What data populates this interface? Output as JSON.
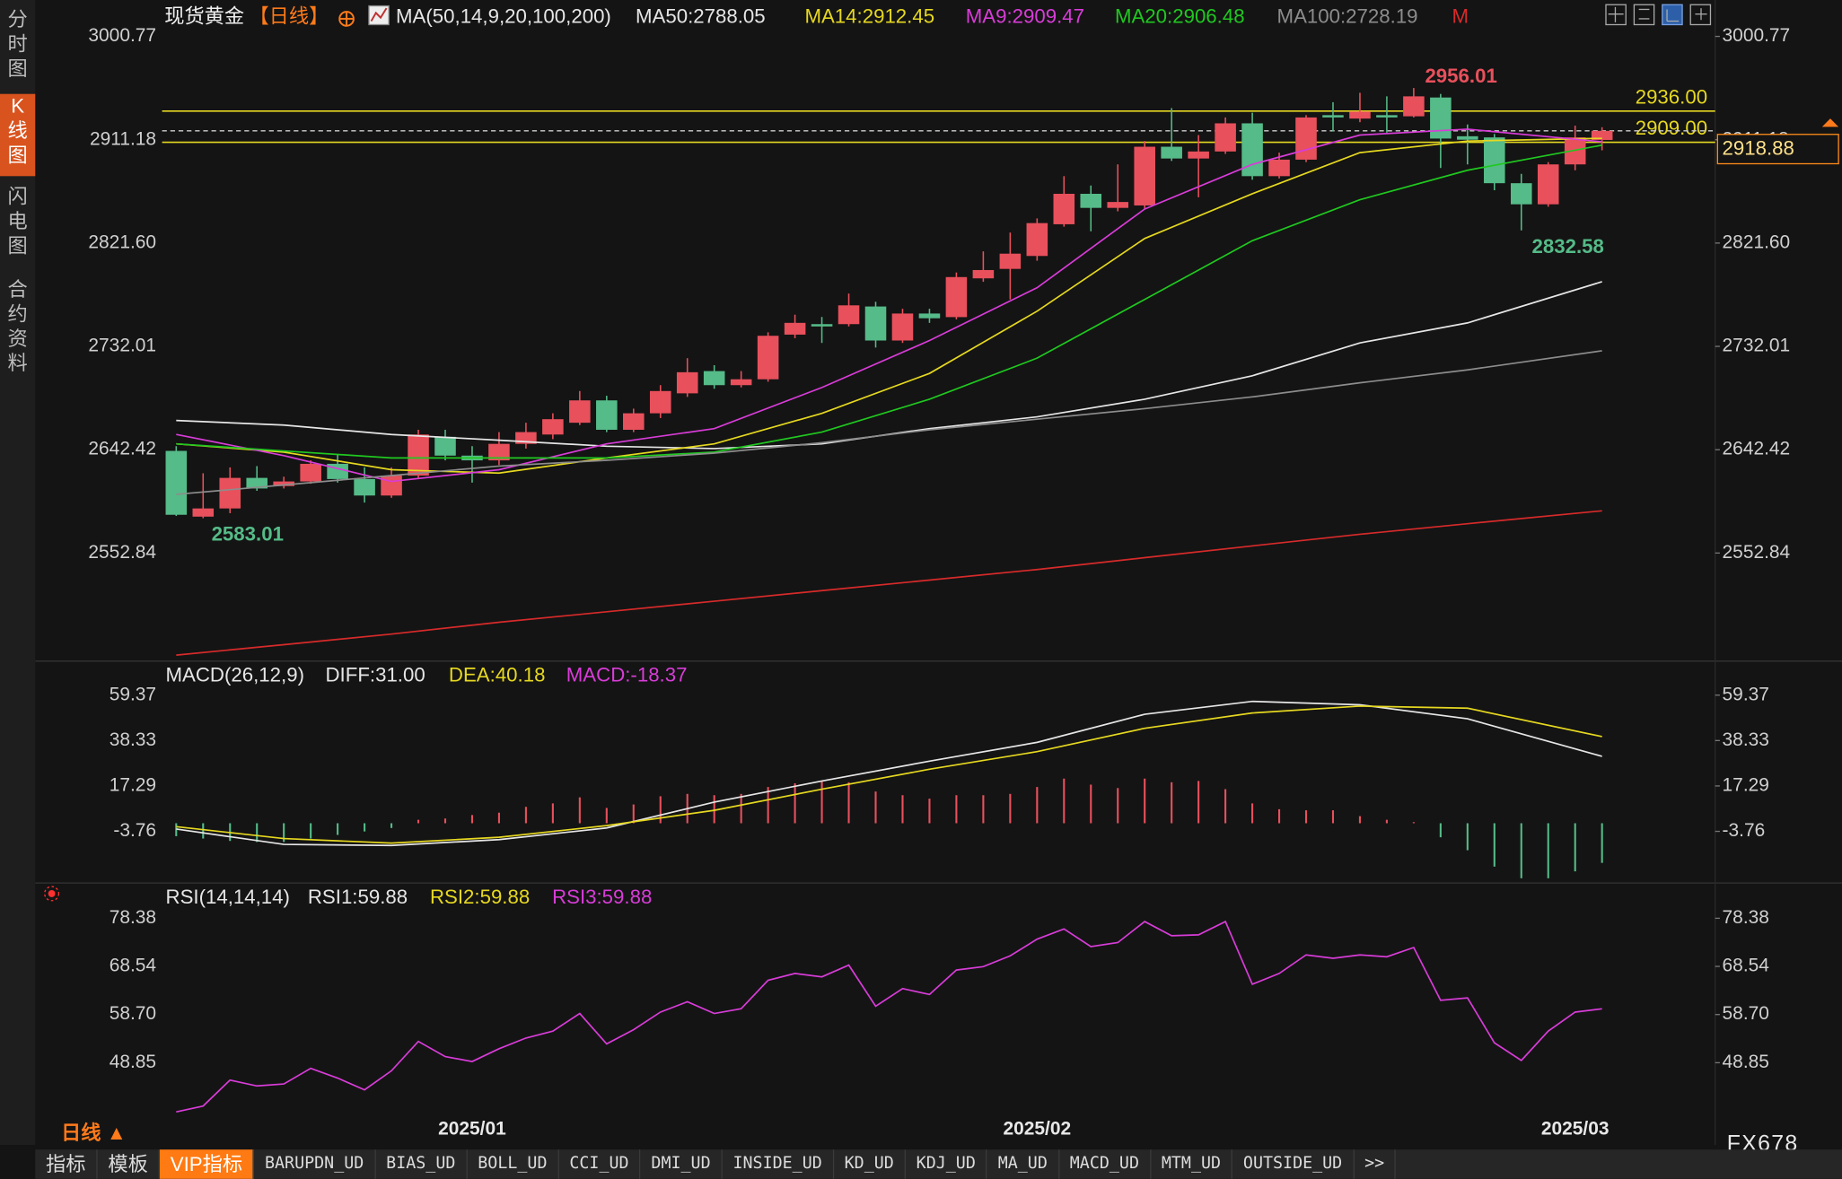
{
  "sidebar": [
    "分时图",
    "K线图",
    "闪电图",
    "合约资料"
  ],
  "header": {
    "symbol": "现货黄金",
    "period": "【日线】",
    "indicator": "MA(50,14,9,20,100,200)"
  },
  "chart_data": [
    {
      "type": "candlestick",
      "categories": [
        null,
        null,
        null,
        null,
        null,
        null,
        null,
        null,
        null,
        null,
        null,
        "2025/01",
        null,
        null,
        null,
        null,
        null,
        null,
        null,
        null,
        null,
        null,
        null,
        null,
        null,
        null,
        null,
        null,
        null,
        null,
        null,
        null,
        "2025/02",
        null,
        null,
        null,
        null,
        null,
        null,
        null,
        null,
        null,
        null,
        null,
        null,
        null,
        null,
        null,
        null,
        null,
        null,
        null,
        "2025/03",
        null
      ],
      "open": [
        2641.4,
        2584.4,
        2591.5,
        2618.0,
        2610.9,
        2614.9,
        2630.2,
        2617.0,
        2602.7,
        2620.0,
        2653.6,
        2637.3,
        2633.2,
        2647.5,
        2655.6,
        2665.8,
        2685.2,
        2659.7,
        2674.0,
        2691.3,
        2710.6,
        2698.4,
        2703.5,
        2742.2,
        2751.3,
        2751.3,
        2766.6,
        2737.1,
        2760.5,
        2757.4,
        2791.0,
        2799.2,
        2810.4,
        2837.9,
        2864.3,
        2852.1,
        2854.2,
        2905.1,
        2894.9,
        2901.0,
        2925.4,
        2879.6,
        2893.9,
        2932.5,
        2929.5,
        2932.5,
        2931.5,
        2947.8,
        2914.2,
        2913.2,
        2873.5,
        2855.2,
        2889.8,
        2911.0
      ],
      "high": [
        2645.5,
        2622.0,
        2627.1,
        2628.2,
        2619.0,
        2633.2,
        2638.3,
        2627.1,
        2627.1,
        2659.7,
        2659.7,
        2645.5,
        2657.7,
        2665.8,
        2674.0,
        2693.3,
        2689.2,
        2678.0,
        2698.4,
        2721.8,
        2715.7,
        2710.6,
        2744.2,
        2759.5,
        2757.5,
        2777.8,
        2770.7,
        2764.6,
        2764.6,
        2796.1,
        2814.4,
        2830.7,
        2843.0,
        2879.6,
        2871.5,
        2889.8,
        2910.1,
        2938.6,
        2915.2,
        2930.5,
        2934.6,
        2900.0,
        2932.5,
        2943.7,
        2951.9,
        2948.8,
        2956.01,
        2950.9,
        2924.4,
        2916.2,
        2881.6,
        2891.8,
        2923.4,
        2922.0
      ],
      "low": [
        2585.0,
        2583.01,
        2587.4,
        2606.8,
        2608.8,
        2612.9,
        2613.9,
        2596.6,
        2600.7,
        2617.0,
        2633.2,
        2613.9,
        2629.2,
        2643.4,
        2651.6,
        2663.8,
        2657.7,
        2657.7,
        2669.9,
        2688.2,
        2695.3,
        2696.4,
        2701.4,
        2739.1,
        2735.0,
        2749.3,
        2731.0,
        2735.0,
        2752.4,
        2755.4,
        2788.0,
        2772.7,
        2806.3,
        2835.8,
        2831.8,
        2849.1,
        2851.1,
        2892.8,
        2861.3,
        2898.9,
        2876.5,
        2877.6,
        2891.8,
        2918.3,
        2926.4,
        2917.3,
        2930.5,
        2886.7,
        2889.8,
        2867.4,
        2832.58,
        2853.1,
        2884.7,
        2902.0
      ],
      "close": [
        2586.0,
        2591.5,
        2618.0,
        2608.8,
        2614.9,
        2630.2,
        2617.0,
        2602.7,
        2620.0,
        2655.6,
        2637.3,
        2633.2,
        2647.5,
        2657.7,
        2668.9,
        2685.2,
        2659.7,
        2674.0,
        2693.3,
        2709.6,
        2698.4,
        2703.5,
        2741.2,
        2752.4,
        2749.3,
        2767.6,
        2737.1,
        2760.5,
        2756.4,
        2792.1,
        2798.2,
        2812.4,
        2838.9,
        2864.3,
        2852.1,
        2857.2,
        2905.1,
        2894.9,
        2901.0,
        2925.4,
        2879.6,
        2893.9,
        2930.5,
        2930.5,
        2935.6,
        2930.5,
        2948.8,
        2912.2,
        2911.2,
        2873.5,
        2855.2,
        2889.8,
        2913.2,
        2918.88
      ],
      "up_color": "#e8505c",
      "down_color": "#55bb88",
      "series": [
        {
          "name": "MA50:2788.05",
          "color": "#e6e6e6",
          "x": [
            0,
            4,
            8,
            12,
            16,
            20,
            24,
            28,
            32,
            36,
            40,
            44,
            48,
            53
          ],
          "values": [
            2667.8,
            2663.8,
            2655.6,
            2650.6,
            2645.5,
            2643.4,
            2647.5,
            2660.7,
            2670.9,
            2686.2,
            2706.5,
            2735.0,
            2752.4,
            2788.05
          ]
        },
        {
          "name": "MA14:2912.45",
          "color": "#e6d820",
          "x": [
            0,
            4,
            8,
            12,
            16,
            20,
            24,
            28,
            32,
            36,
            40,
            44,
            48,
            53
          ],
          "values": [
            2647.5,
            2640.4,
            2625.1,
            2622.1,
            2635.3,
            2647.5,
            2674.0,
            2708.6,
            2762.5,
            2825.6,
            2864.3,
            2900.0,
            2910.1,
            2912.45
          ]
        },
        {
          "name": "MA9:2909.47",
          "color": "#d83cd8",
          "x": [
            0,
            4,
            8,
            12,
            16,
            20,
            24,
            28,
            32,
            36,
            40,
            44,
            48,
            53
          ],
          "values": [
            2655.6,
            2637.3,
            2614.9,
            2625.1,
            2647.5,
            2660.7,
            2696.4,
            2737.1,
            2782.9,
            2851.1,
            2889.8,
            2915.2,
            2920.3,
            2909.47
          ]
        },
        {
          "name": "MA20:2906.48",
          "color": "#20c820",
          "x": [
            0,
            4,
            8,
            12,
            16,
            20,
            24,
            28,
            32,
            36,
            40,
            44,
            48,
            53
          ],
          "values": [
            2647.5,
            2641.4,
            2635.3,
            2635.3,
            2635.3,
            2640.4,
            2657.7,
            2686.2,
            2721.8,
            2772.7,
            2823.6,
            2859.2,
            2884.7,
            2906.48
          ]
        },
        {
          "name": "MA100:2728.19",
          "color": "#8c8c8c",
          "x": [
            0,
            4,
            8,
            12,
            16,
            20,
            24,
            28,
            32,
            36,
            40,
            44,
            48,
            53
          ],
          "values": [
            2603.7,
            2611.9,
            2620.0,
            2628.2,
            2633.2,
            2639.4,
            2648.5,
            2659.7,
            2668.9,
            2678.0,
            2688.2,
            2700.4,
            2711.6,
            2728.19
          ]
        },
        {
          "name": "M",
          "color": "#d82a2a",
          "x": [
            0,
            4,
            8,
            12,
            16,
            20,
            24,
            28,
            32,
            36,
            40,
            44,
            48,
            53
          ],
          "values": [
            2464.3,
            2473.4,
            2482.6,
            2492.8,
            2501.9,
            2511.1,
            2520.2,
            2529.4,
            2538.6,
            2548.8,
            2559.0,
            2569.1,
            2578.3,
            2589.5
          ]
        }
      ],
      "ylim": [
        2462.2,
        3022.15
      ],
      "yticks": [
        3000.77,
        2911.18,
        {
          "value": 2821.6,
          "label": "2821.60"
        },
        2732.01,
        2642.42,
        2552.84
      ],
      "hlines": [
        {
          "value": 2936,
          "label": "2936.00"
        },
        {
          "value": 2909,
          "label": "2909.00"
        }
      ],
      "hline_color": "#e6d820",
      "last_price": 2918.88,
      "annotations": [
        "2956.01",
        "2832.58",
        "2583.01"
      ]
    },
    {
      "type": "macd",
      "title": "MACD(26,12,9)",
      "series": [
        {
          "name": "DIFF:31.00",
          "color": "#e6e6e6",
          "x": [
            0,
            4,
            8,
            12,
            16,
            20,
            24,
            28,
            32,
            36,
            40,
            44,
            48,
            53
          ],
          "values": [
            -2.7,
            -9.8,
            -10.3,
            -7.6,
            -2.2,
            9.8,
            19.6,
            28.8,
            37.5,
            50.5,
            56.5,
            54.9,
            48.4,
            31.0
          ]
        },
        {
          "name": "DEA:40.18",
          "color": "#e6d820",
          "x": [
            0,
            4,
            8,
            12,
            16,
            20,
            24,
            28,
            32,
            36,
            40,
            44,
            48,
            53
          ],
          "values": [
            -1.6,
            -7.1,
            -9.2,
            -6.5,
            -1.1,
            6.0,
            15.8,
            25.0,
            33.2,
            44.0,
            51.1,
            54.3,
            53.3,
            40.18
          ]
        }
      ],
      "histogram": {
        "name": "MACD:-18.37",
        "color": "#d83cd8",
        "up_color": "#e8505c",
        "down_color": "#55bb88",
        "values": [
          -6.0,
          -7.1,
          -8.2,
          -8.7,
          -8.7,
          -7.1,
          -5.4,
          -3.8,
          -2.2,
          1.6,
          2.2,
          3.8,
          4.9,
          7.6,
          9.2,
          12.0,
          7.1,
          8.7,
          12.5,
          13.6,
          13.0,
          13.6,
          16.8,
          18.5,
          19.6,
          19.0,
          14.7,
          13.0,
          11.4,
          13.0,
          13.0,
          13.6,
          16.8,
          20.7,
          17.9,
          16.3,
          20.7,
          19.0,
          19.6,
          15.8,
          9.2,
          6.5,
          6.0,
          6.0,
          3.3,
          1.6,
          0.5,
          -6.5,
          -12.5,
          -20.1,
          -25.5,
          -25.5,
          -22.3,
          -18.37
        ]
      },
      "ylim": [
        -27.71,
        74.06
      ],
      "yticks": [
        59.37,
        38.33,
        17.29,
        -3.76
      ]
    },
    {
      "type": "line",
      "title": "RSI(14,14,14)",
      "legend": [
        {
          "name": "RSI1:59.88",
          "color": "#e6e6e6"
        },
        {
          "name": "RSI2:59.88",
          "color": "#e6d820"
        },
        {
          "name": "RSI3:59.88",
          "color": "#d83cd8"
        }
      ],
      "color": "#d83cd8",
      "values": [
        38.8,
        40.0,
        45.3,
        44.1,
        44.5,
        47.7,
        45.7,
        43.3,
        47.2,
        53.2,
        50.1,
        49.1,
        51.7,
        53.9,
        55.3,
        58.9,
        52.7,
        55.6,
        59.2,
        61.3,
        58.9,
        59.9,
        65.7,
        67.1,
        66.4,
        68.8,
        60.4,
        64.0,
        62.8,
        67.8,
        68.5,
        70.7,
        74.1,
        76.2,
        72.6,
        73.4,
        77.7,
        74.8,
        75.0,
        77.7,
        64.9,
        67.1,
        70.9,
        70.2,
        70.9,
        70.5,
        72.4,
        61.6,
        62.1,
        52.9,
        49.3,
        55.3,
        59.2,
        59.88
      ],
      "ylim": [
        38.05,
        80.06
      ],
      "yticks": [
        78.38,
        68.54,
        {
          "value": 58.7,
          "label": "58.70"
        },
        48.85
      ]
    }
  ],
  "footer": {
    "period": "日线 ▲",
    "brand": "FX678",
    "tabs": [
      "指标",
      "模板",
      "VIP指标",
      "BARUPDN_UD",
      "BIAS_UD",
      "BOLL_UD",
      "CCI_UD",
      "DMI_UD",
      "INSIDE_UD",
      "KD_UD",
      "KDJ_UD",
      "MA_UD",
      "MACD_UD",
      "MTM_UD",
      "OUTSIDE_UD",
      ">>"
    ]
  }
}
